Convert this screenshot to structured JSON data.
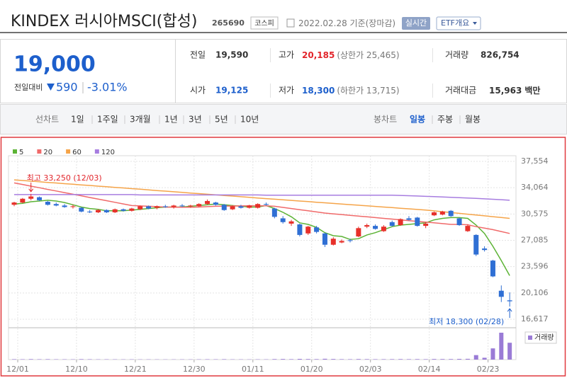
{
  "header": {
    "name": "KINDEX 러시아MSCI(합성)",
    "code": "265690",
    "market": "코스피",
    "date": "2022.02.28",
    "basis": "기준(장마감)",
    "realtime": "실시간",
    "etf_info": "ETF개요"
  },
  "quote": {
    "price": "19,000",
    "change_label": "전일대비",
    "change": "590",
    "change_rate": "-3.01%"
  },
  "stats": {
    "prev_label": "전일",
    "prev": "19,590",
    "high_label": "고가",
    "high": "20,185",
    "upper_limit": "(상한가 25,465)",
    "volume_label": "거래량",
    "volume": "826,754",
    "open_label": "시가",
    "open": "19,125",
    "low_label": "저가",
    "low": "18,300",
    "lower_limit": "(하한가 13,715)",
    "amount_label": "거래대금",
    "amount": "15,963",
    "amount_unit": "백만"
  },
  "tabs": {
    "line_label": "선차트",
    "line_periods": [
      "1일",
      "1주일",
      "3개월",
      "1년",
      "3년",
      "5년",
      "10년"
    ],
    "candle_label": "봉차트",
    "candle_periods": [
      "일봉",
      "주봉",
      "월봉"
    ]
  },
  "chart_data": {
    "type": "candlestick",
    "categories": [
      "12/01",
      null,
      null,
      null,
      null,
      null,
      null,
      "12/10",
      null,
      null,
      null,
      null,
      null,
      null,
      "12/21",
      null,
      null,
      null,
      null,
      null,
      null,
      "12/30",
      null,
      null,
      null,
      null,
      null,
      null,
      "01/11",
      null,
      null,
      null,
      null,
      null,
      null,
      "01/20",
      null,
      null,
      null,
      null,
      null,
      null,
      "02/03",
      null,
      null,
      null,
      null,
      null,
      null,
      "02/14",
      null,
      null,
      null,
      null,
      null,
      null,
      "02/23",
      null,
      null,
      null
    ],
    "open": [
      31800,
      32100,
      32600,
      32800,
      32200,
      31900,
      31700,
      31500,
      31400,
      30900,
      30800,
      31100,
      30800,
      31200,
      31000,
      31200,
      31600,
      31400,
      31600,
      31500,
      31700,
      31600,
      31600,
      31900,
      32100,
      31800,
      31200,
      31600,
      31400,
      31400,
      31900,
      31300,
      30000,
      29300,
      29200,
      28000,
      28800,
      28000,
      26500,
      26800,
      27100,
      27600,
      28900,
      29000,
      28300,
      29500,
      29100,
      30000,
      30100,
      29000,
      30400,
      30500,
      31000,
      30000,
      28300,
      27800,
      26000,
      24400,
      20400,
      19125
    ],
    "high": [
      32200,
      32700,
      33250,
      32900,
      32300,
      32100,
      31900,
      31800,
      31500,
      31100,
      31200,
      31200,
      31300,
      31300,
      31400,
      31700,
      31700,
      31700,
      31800,
      31800,
      31900,
      31800,
      32000,
      32500,
      32200,
      31900,
      31700,
      31800,
      31800,
      32000,
      32100,
      31400,
      30300,
      29800,
      29300,
      29000,
      29000,
      28100,
      27500,
      27200,
      27300,
      28900,
      29300,
      29200,
      29100,
      29700,
      30000,
      30300,
      30200,
      29500,
      30900,
      31000,
      31100,
      30100,
      29200,
      27900,
      26300,
      24500,
      21100,
      20185
    ],
    "low": [
      31600,
      32000,
      32400,
      32300,
      31700,
      31600,
      31400,
      31300,
      30800,
      30700,
      30700,
      30700,
      30700,
      30900,
      30900,
      31100,
      31200,
      31200,
      31400,
      31300,
      31500,
      31400,
      31500,
      31800,
      31700,
      31000,
      31100,
      31300,
      31300,
      31300,
      31700,
      30000,
      29300,
      29000,
      27600,
      27800,
      28000,
      26200,
      26400,
      26700,
      26800,
      27500,
      28700,
      28500,
      28200,
      28900,
      29000,
      29700,
      28900,
      28700,
      30300,
      30400,
      30200,
      29000,
      28200,
      25000,
      25600,
      22200,
      18900,
      18300
    ],
    "close": [
      32100,
      32600,
      32900,
      32400,
      31800,
      31700,
      31500,
      31600,
      30900,
      30800,
      31100,
      30800,
      31200,
      31000,
      31300,
      31600,
      31300,
      31600,
      31500,
      31700,
      31600,
      31700,
      31900,
      32300,
      31800,
      31100,
      31600,
      31400,
      31700,
      31900,
      31800,
      30200,
      29500,
      29600,
      27800,
      28900,
      28200,
      26500,
      27300,
      27000,
      27000,
      28700,
      29100,
      28600,
      28900,
      29000,
      29900,
      29800,
      29000,
      29300,
      30800,
      30900,
      30300,
      29100,
      29000,
      25200,
      25800,
      22300,
      19590,
      19000
    ],
    "up_color": "#e7302a",
    "down_color": "#2f6fd4",
    "moving_averages": [
      {
        "name": "5",
        "color": "#5cb335",
        "values": [
          31900,
          32000,
          32200,
          32300,
          32400,
          32300,
          32100,
          31800,
          31500,
          31300,
          31200,
          31000,
          31000,
          31000,
          31100,
          31200,
          31300,
          31400,
          31500,
          31500,
          31500,
          31600,
          31700,
          31800,
          31900,
          31800,
          31700,
          31600,
          31500,
          31500,
          31700,
          31300,
          30800,
          30200,
          29400,
          29200,
          28800,
          28100,
          27700,
          27600,
          27200,
          27300,
          27800,
          28100,
          28500,
          28900,
          29100,
          29200,
          29300,
          29400,
          29800,
          30000,
          30100,
          30100,
          30000,
          29100,
          28000,
          26300,
          24400,
          22400
        ]
      },
      {
        "name": "20",
        "color": "#f06a6a",
        "values": [
          34700,
          34490,
          34270,
          34060,
          33840,
          33630,
          33410,
          33200,
          32990,
          32770,
          32560,
          32340,
          32130,
          31910,
          31700,
          31650,
          31600,
          31550,
          31500,
          31480,
          31470,
          31480,
          31500,
          31550,
          31600,
          31620,
          31640,
          31650,
          31660,
          31670,
          31660,
          31600,
          31450,
          31300,
          31150,
          31000,
          30850,
          30700,
          30600,
          30500,
          30400,
          30300,
          30200,
          30100,
          30000,
          29900,
          29800,
          29700,
          29600,
          29500,
          29400,
          29300,
          29200,
          29200,
          29150,
          28900,
          28700,
          28500,
          28250,
          28000
        ]
      },
      {
        "name": "60",
        "color": "#f5a449",
        "values": [
          35100,
          35020,
          34930,
          34850,
          34770,
          34690,
          34600,
          34520,
          34440,
          34360,
          34270,
          34190,
          34110,
          34030,
          33940,
          33860,
          33780,
          33690,
          33610,
          33530,
          33450,
          33360,
          33280,
          33200,
          33120,
          33030,
          32950,
          32870,
          32780,
          32700,
          32620,
          32540,
          32460,
          32380,
          32300,
          32220,
          32140,
          32060,
          31980,
          31900,
          31820,
          31740,
          31660,
          31580,
          31500,
          31420,
          31340,
          31260,
          31180,
          31100,
          30990,
          30880,
          30770,
          30660,
          30550,
          30440,
          30330,
          30220,
          30110,
          30000
        ]
      },
      {
        "name": "120",
        "color": "#a77de0",
        "values": [
          33150,
          33150,
          33150,
          33150,
          33150,
          33150,
          33150,
          33150,
          33150,
          33150,
          33150,
          33150,
          33150,
          33150,
          33150,
          33100,
          33100,
          33100,
          33100,
          33100,
          33100,
          33100,
          33100,
          33100,
          33100,
          33100,
          33100,
          33100,
          33100,
          33100,
          33080,
          33080,
          33080,
          33080,
          33080,
          33080,
          33080,
          33080,
          33080,
          33080,
          33080,
          33080,
          33080,
          33080,
          33080,
          33070,
          33040,
          33000,
          32960,
          32920,
          32880,
          32840,
          32790,
          32740,
          32690,
          32640,
          32590,
          32530,
          32470,
          32400
        ]
      }
    ],
    "volume": {
      "name": "거래량",
      "color": "#9a7bd6",
      "values": [
        21000,
        18000,
        25000,
        19000,
        22000,
        17000,
        16000,
        15000,
        23000,
        19000,
        14000,
        16000,
        15000,
        13000,
        14000,
        12000,
        13000,
        12000,
        11000,
        12000,
        13000,
        12000,
        15000,
        18000,
        16000,
        21000,
        14000,
        13000,
        12000,
        15000,
        14000,
        26000,
        30000,
        22000,
        35000,
        28000,
        24000,
        40000,
        30000,
        22000,
        20000,
        28000,
        24000,
        20000,
        21000,
        23000,
        26000,
        22000,
        25000,
        21000,
        30000,
        28000,
        27000,
        34000,
        38000,
        220000,
        90000,
        550000,
        1320000,
        826754
      ]
    },
    "annotations": [
      {
        "text": "최고 33,250 (12/03)"
      },
      {
        "text": "최저 18,300 (02/28)"
      }
    ],
    "ylim": [
      16617,
      37554
    ],
    "yticks": [
      {
        "value": 37554,
        "label": "37,554"
      },
      {
        "value": 34064,
        "label": "34,064"
      },
      {
        "value": 30575,
        "label": "30,575"
      },
      {
        "value": 27085,
        "label": "27,085"
      },
      {
        "value": 23596,
        "label": "23,596"
      },
      {
        "value": 20106,
        "label": "20,106"
      },
      {
        "value": 16617,
        "label": "16,617"
      }
    ],
    "grid": true
  }
}
